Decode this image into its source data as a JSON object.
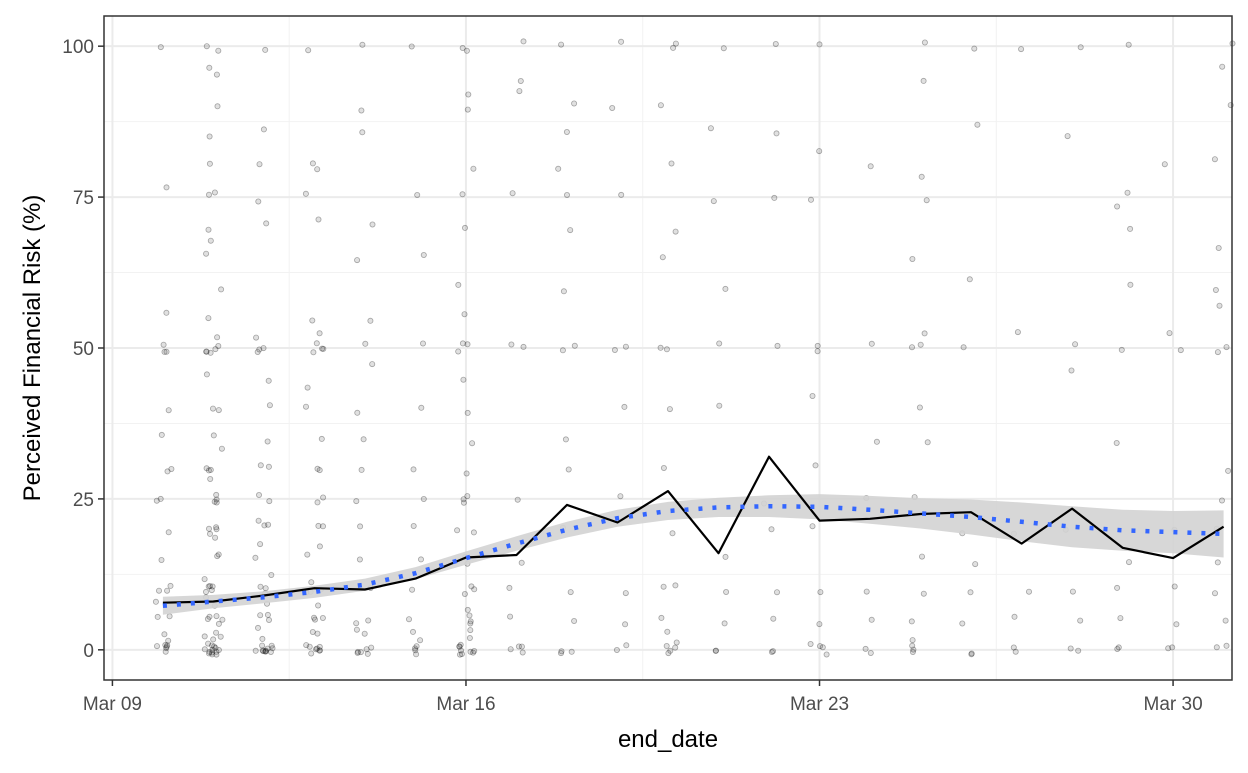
{
  "chart_data": {
    "type": "scatter",
    "title": "",
    "xlabel": "end_date",
    "ylabel": "Perceived Financial Risk (%)",
    "x_ticks": [
      "Mar 09",
      "Mar 16",
      "Mar 23",
      "Mar 30"
    ],
    "y_ticks": [
      "0",
      "25",
      "50",
      "75",
      "100"
    ],
    "xlim": [
      "2020-03-08 20:00",
      "2020-03-31 04:00"
    ],
    "ylim": [
      -5,
      105
    ],
    "grid": true,
    "legend": "none",
    "survey_dates": [
      "2020-03-10",
      "2020-03-11",
      "2020-03-12",
      "2020-03-13",
      "2020-03-14",
      "2020-03-15",
      "2020-03-16",
      "2020-03-17",
      "2020-03-18",
      "2020-03-19",
      "2020-03-20",
      "2020-03-21",
      "2020-03-22",
      "2020-03-23",
      "2020-03-24",
      "2020-03-25",
      "2020-03-26",
      "2020-03-27",
      "2020-03-28",
      "2020-03-29",
      "2020-03-30",
      "2020-03-31"
    ],
    "series": [
      {
        "type": "points",
        "description": "individual responses, jittered horizontally",
        "values_by_date": [
          [
            0,
            0,
            0,
            0,
            0,
            1,
            2,
            3,
            5,
            5,
            8,
            10,
            10,
            10,
            15,
            20,
            25,
            25,
            30,
            30,
            35,
            40,
            50,
            50,
            50,
            56,
            77,
            100
          ],
          [
            0,
            0,
            0,
            0,
            0,
            0,
            0,
            0,
            0,
            0,
            0,
            0,
            1,
            1,
            2,
            2,
            3,
            4,
            5,
            5,
            5,
            5,
            7,
            8,
            10,
            10,
            10,
            10,
            10,
            12,
            15,
            15,
            18,
            20,
            20,
            20,
            20,
            25,
            25,
            25,
            25,
            28,
            30,
            30,
            30,
            33,
            35,
            40,
            40,
            45,
            50,
            50,
            50,
            50,
            50,
            52,
            55,
            60,
            65,
            67,
            70,
            75,
            75,
            80,
            85,
            90,
            95,
            97,
            100,
            100
          ],
          [
            0,
            0,
            0,
            0,
            0,
            0,
            0,
            0,
            0,
            0,
            1,
            2,
            3,
            5,
            5,
            5,
            7,
            10,
            10,
            10,
            12,
            15,
            17,
            20,
            20,
            22,
            25,
            25,
            30,
            30,
            35,
            40,
            45,
            50,
            50,
            50,
            52,
            70,
            75,
            80,
            86,
            100
          ],
          [
            0,
            0,
            0,
            0,
            0,
            0,
            0,
            1,
            2,
            3,
            5,
            5,
            5,
            7,
            10,
            10,
            10,
            12,
            15,
            17,
            20,
            20,
            25,
            25,
            30,
            30,
            35,
            40,
            44,
            50,
            50,
            50,
            50,
            52,
            55,
            72,
            75,
            80,
            80,
            100
          ],
          [
            0,
            0,
            0,
            0,
            0,
            1,
            2,
            3,
            5,
            5,
            10,
            10,
            15,
            20,
            25,
            30,
            35,
            40,
            48,
            50,
            55,
            65,
            70,
            85,
            90,
            100
          ],
          [
            0,
            0,
            0,
            0,
            1,
            3,
            5,
            10,
            15,
            20,
            25,
            30,
            40,
            50,
            66,
            75,
            100
          ],
          [
            0,
            0,
            0,
            0,
            0,
            0,
            0,
            0,
            1,
            2,
            3,
            5,
            5,
            5,
            7,
            10,
            10,
            10,
            15,
            15,
            20,
            20,
            25,
            25,
            25,
            30,
            35,
            40,
            45,
            50,
            50,
            50,
            55,
            60,
            70,
            75,
            80,
            90,
            92,
            100,
            100
          ],
          [
            0,
            0,
            0,
            0,
            5,
            10,
            15,
            25,
            50,
            50,
            75,
            92,
            95,
            100
          ],
          [
            0,
            0,
            0,
            5,
            10,
            20,
            30,
            35,
            50,
            50,
            60,
            69,
            75,
            80,
            85,
            90,
            100
          ],
          [
            0,
            0,
            5,
            10,
            25,
            40,
            50,
            50,
            75,
            90,
            100
          ],
          [
            0,
            0,
            0,
            0,
            1,
            3,
            5,
            10,
            10,
            20,
            30,
            40,
            50,
            50,
            65,
            70,
            80,
            90,
            100,
            100
          ],
          [
            0,
            0,
            5,
            10,
            15,
            40,
            50,
            60,
            75,
            87,
            100
          ],
          [
            0,
            0,
            5,
            10,
            20,
            25,
            50,
            75,
            85,
            100
          ],
          [
            0,
            0,
            0,
            1,
            5,
            10,
            20,
            30,
            42,
            50,
            50,
            75,
            83,
            100
          ],
          [
            0,
            0,
            5,
            10,
            25,
            35,
            50,
            80
          ],
          [
            0,
            0,
            0,
            1,
            5,
            10,
            15,
            25,
            35,
            40,
            50,
            50,
            53,
            65,
            75,
            78,
            94,
            100
          ],
          [
            0,
            0,
            5,
            10,
            15,
            20,
            50,
            61,
            87,
            100
          ],
          [
            0,
            0,
            5,
            10,
            20,
            52,
            100
          ],
          [
            0,
            0,
            5,
            10,
            20,
            47,
            50,
            85,
            100
          ],
          [
            0,
            0,
            5,
            10,
            15,
            35,
            50,
            60,
            70,
            74,
            75,
            100
          ],
          [
            0,
            0,
            5,
            10,
            20,
            50,
            53,
            80
          ],
          [
            0,
            0,
            5,
            10,
            15,
            20,
            25,
            30,
            50,
            50,
            57,
            59,
            66,
            82,
            90,
            97,
            100
          ]
        ]
      },
      {
        "name": "mean",
        "type": "line",
        "color": "#000000",
        "values": [
          7.8,
          8.0,
          9.0,
          10.2,
          10.0,
          11.8,
          15.3,
          15.7,
          24.0,
          21.1,
          26.3,
          16.0,
          32.0,
          21.4,
          21.7,
          22.5,
          22.8,
          17.6,
          23.4,
          16.9,
          15.2,
          20.4
        ]
      },
      {
        "name": "smooth",
        "type": "line",
        "style": "dotted",
        "color": "#3366ff",
        "values": [
          7.3,
          8.0,
          8.7,
          9.6,
          10.8,
          12.7,
          15.2,
          17.6,
          19.9,
          21.8,
          23.0,
          23.6,
          23.8,
          23.7,
          23.2,
          22.6,
          22.0,
          21.2,
          20.4,
          19.8,
          19.5,
          19.2
        ]
      },
      {
        "name": "confidence band",
        "type": "ribbon",
        "color": "#d3d3d3",
        "lower": [
          5.8,
          6.9,
          7.7,
          8.6,
          9.8,
          11.7,
          14.1,
          16.4,
          18.6,
          20.4,
          21.5,
          22.0,
          22.0,
          21.6,
          20.9,
          20.1,
          19.1,
          18.0,
          17.0,
          16.4,
          16.0,
          15.3
        ],
        "upper": [
          8.8,
          9.1,
          9.7,
          10.6,
          11.8,
          13.7,
          16.3,
          18.8,
          21.2,
          23.2,
          24.5,
          25.2,
          25.6,
          25.8,
          25.5,
          25.1,
          24.9,
          24.4,
          23.8,
          23.2,
          23.0,
          23.1
        ]
      }
    ]
  }
}
